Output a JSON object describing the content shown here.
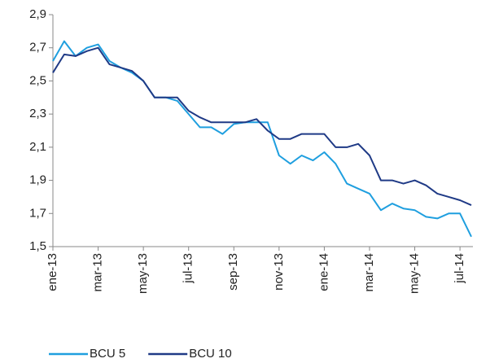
{
  "chart_data": {
    "type": "line",
    "categories": [
      "ene-13",
      null,
      null,
      null,
      "mar-13",
      null,
      null,
      null,
      "may-13",
      null,
      null,
      null,
      "jul-13",
      null,
      null,
      null,
      "sep-13",
      null,
      null,
      null,
      "nov-13",
      null,
      null,
      null,
      "ene-14",
      null,
      null,
      null,
      "mar-14",
      null,
      null,
      null,
      "may-14",
      null,
      null,
      null,
      "jul-14",
      null
    ],
    "series": [
      {
        "name": "BCU 5",
        "color": "#1f9fdf",
        "values": [
          2.62,
          2.74,
          2.65,
          2.7,
          2.72,
          2.62,
          2.58,
          2.55,
          2.5,
          2.4,
          2.4,
          2.38,
          2.3,
          2.22,
          2.22,
          2.18,
          2.24,
          2.25,
          2.25,
          2.25,
          2.05,
          2.0,
          2.05,
          2.02,
          2.07,
          2.0,
          1.88,
          1.85,
          1.82,
          1.72,
          1.76,
          1.73,
          1.72,
          1.68,
          1.67,
          1.7,
          1.7,
          1.56
        ]
      },
      {
        "name": "BCU 10",
        "color": "#1f3a86",
        "values": [
          2.55,
          2.66,
          2.65,
          2.68,
          2.7,
          2.6,
          2.58,
          2.56,
          2.5,
          2.4,
          2.4,
          2.4,
          2.32,
          2.28,
          2.25,
          2.25,
          2.25,
          2.25,
          2.27,
          2.2,
          2.15,
          2.15,
          2.18,
          2.18,
          2.18,
          2.1,
          2.1,
          2.12,
          2.05,
          1.9,
          1.9,
          1.88,
          1.9,
          1.87,
          1.82,
          1.8,
          1.78,
          1.75
        ]
      }
    ],
    "ylim": [
      1.5,
      2.9
    ],
    "yticks": [
      {
        "value": 1.5,
        "label": "1,5"
      },
      {
        "value": 1.7,
        "label": "1,7"
      },
      {
        "value": 1.9,
        "label": "1,9"
      },
      {
        "value": 2.1,
        "label": "2,1"
      },
      {
        "value": 2.3,
        "label": "2,3"
      },
      {
        "value": 2.5,
        "label": "2,5"
      },
      {
        "value": 2.7,
        "label": "2,7"
      },
      {
        "value": 2.9,
        "label": "2,9"
      }
    ],
    "legend": "bottom-left"
  }
}
